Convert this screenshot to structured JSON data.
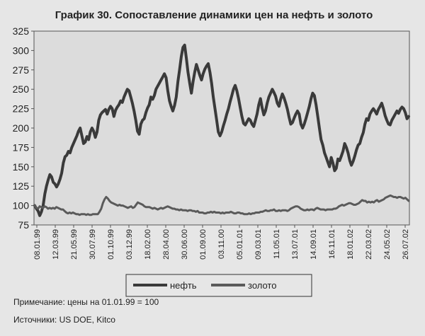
{
  "chart_data": {
    "type": "line",
    "title": "График 30. Сопоставление динамики цен на нефть и золото",
    "xlabel": "",
    "ylabel": "",
    "ylim": [
      75,
      325
    ],
    "yticks": [
      75,
      100,
      125,
      150,
      175,
      200,
      225,
      250,
      275,
      300,
      325
    ],
    "grid": false,
    "legend_position": "bottom",
    "x_tick_labels": [
      "08.01.99",
      "12.03.99",
      "21.05.99",
      "30.07.99",
      "01.10.99",
      "03.12.99",
      "18.02.00",
      "28.04.00",
      "30.06.00",
      "01.09.00",
      "03.11.00",
      "05.01.01",
      "09.03.01",
      "11.05.01",
      "13.07.01",
      "14.09.01",
      "16.11.01",
      "18.01.02",
      "22.03.02",
      "24.05.02",
      "26.07.02"
    ],
    "series": [
      {
        "name": "нефть",
        "color": "#3a3a3a",
        "values": [
          100,
          96,
          93,
          87,
          92,
          100,
          115,
          125,
          133,
          140,
          137,
          130,
          128,
          124,
          128,
          134,
          142,
          155,
          163,
          165,
          170,
          168,
          175,
          180,
          185,
          190,
          196,
          200,
          190,
          180,
          182,
          189,
          185,
          195,
          200,
          196,
          188,
          195,
          210,
          217,
          220,
          222,
          224,
          218,
          224,
          228,
          225,
          215,
          223,
          227,
          230,
          235,
          233,
          240,
          245,
          250,
          248,
          240,
          232,
          222,
          210,
          196,
          192,
          205,
          210,
          212,
          220,
          226,
          230,
          240,
          237,
          242,
          250,
          254,
          258,
          262,
          266,
          270,
          265,
          248,
          235,
          228,
          222,
          229,
          240,
          260,
          275,
          292,
          304,
          307,
          290,
          272,
          258,
          245,
          260,
          272,
          282,
          275,
          268,
          262,
          270,
          276,
          280,
          283,
          272,
          258,
          240,
          225,
          210,
          195,
          190,
          195,
          203,
          210,
          218,
          225,
          234,
          242,
          250,
          255,
          248,
          238,
          226,
          215,
          206,
          204,
          208,
          212,
          210,
          205,
          202,
          210,
          218,
          230,
          238,
          226,
          217,
          222,
          232,
          240,
          245,
          250,
          246,
          241,
          232,
          228,
          237,
          244,
          239,
          232,
          224,
          214,
          205,
          207,
          213,
          218,
          222,
          218,
          205,
          200,
          205,
          212,
          220,
          228,
          238,
          245,
          242,
          230,
          215,
          200,
          185,
          178,
          168,
          162,
          156,
          150,
          162,
          155,
          145,
          148,
          160,
          158,
          164,
          170,
          180,
          175,
          168,
          158,
          152,
          157,
          164,
          172,
          178,
          180,
          188,
          194,
          205,
          212,
          210,
          218,
          222,
          225,
          222,
          218,
          224,
          228,
          232,
          225,
          216,
          210,
          205,
          204,
          210,
          214,
          218,
          222,
          219,
          224,
          227,
          225,
          220,
          212,
          215
        ]
      },
      {
        "name": "золото",
        "color": "#5a5a5a",
        "values": [
          100,
          97,
          96,
          99,
          98,
          97,
          99,
          98,
          96,
          97,
          96,
          97,
          96,
          98,
          97,
          96,
          95,
          95,
          93,
          91,
          90,
          91,
          90,
          91,
          90,
          89,
          89,
          88,
          89,
          89,
          89,
          88,
          89,
          88,
          88,
          89,
          89,
          89,
          89,
          92,
          96,
          103,
          108,
          111,
          109,
          106,
          104,
          103,
          102,
          101,
          100,
          101,
          100,
          100,
          99,
          98,
          97,
          98,
          99,
          97,
          98,
          101,
          104,
          103,
          102,
          101,
          99,
          98,
          98,
          98,
          97,
          96,
          97,
          96,
          95,
          96,
          97,
          96,
          97,
          98,
          99,
          98,
          97,
          96,
          96,
          95,
          95,
          94,
          95,
          94,
          94,
          94,
          93,
          94,
          94,
          93,
          93,
          92,
          93,
          91,
          91,
          91,
          90,
          90,
          91,
          91,
          92,
          91,
          92,
          91,
          91,
          91,
          90,
          91,
          90,
          91,
          91,
          91,
          92,
          91,
          90,
          90,
          91,
          91,
          90,
          90,
          89,
          89,
          89,
          90,
          89,
          90,
          90,
          91,
          91,
          91,
          92,
          92,
          93,
          94,
          93,
          93,
          94,
          94,
          95,
          93,
          93,
          94,
          93,
          94,
          94,
          94,
          93,
          94,
          96,
          97,
          98,
          99,
          99,
          98,
          96,
          95,
          94,
          94,
          95,
          94,
          95,
          95,
          94,
          96,
          97,
          96,
          95,
          95,
          95,
          94,
          95,
          95,
          95,
          95,
          96,
          96,
          97,
          99,
          100,
          101,
          100,
          101,
          102,
          103,
          103,
          102,
          101,
          101,
          102,
          103,
          105,
          107,
          106,
          106,
          104,
          105,
          104,
          105,
          104,
          106,
          107,
          105,
          106,
          107,
          108,
          110,
          111,
          112,
          113,
          112,
          111,
          111,
          110,
          111,
          111,
          110,
          109,
          110,
          108,
          106
        ]
      }
    ]
  },
  "notes": {
    "remark": "Примечание: цены на 01.01.99 = 100",
    "sources": "Источники: US DOE, Kitco"
  }
}
